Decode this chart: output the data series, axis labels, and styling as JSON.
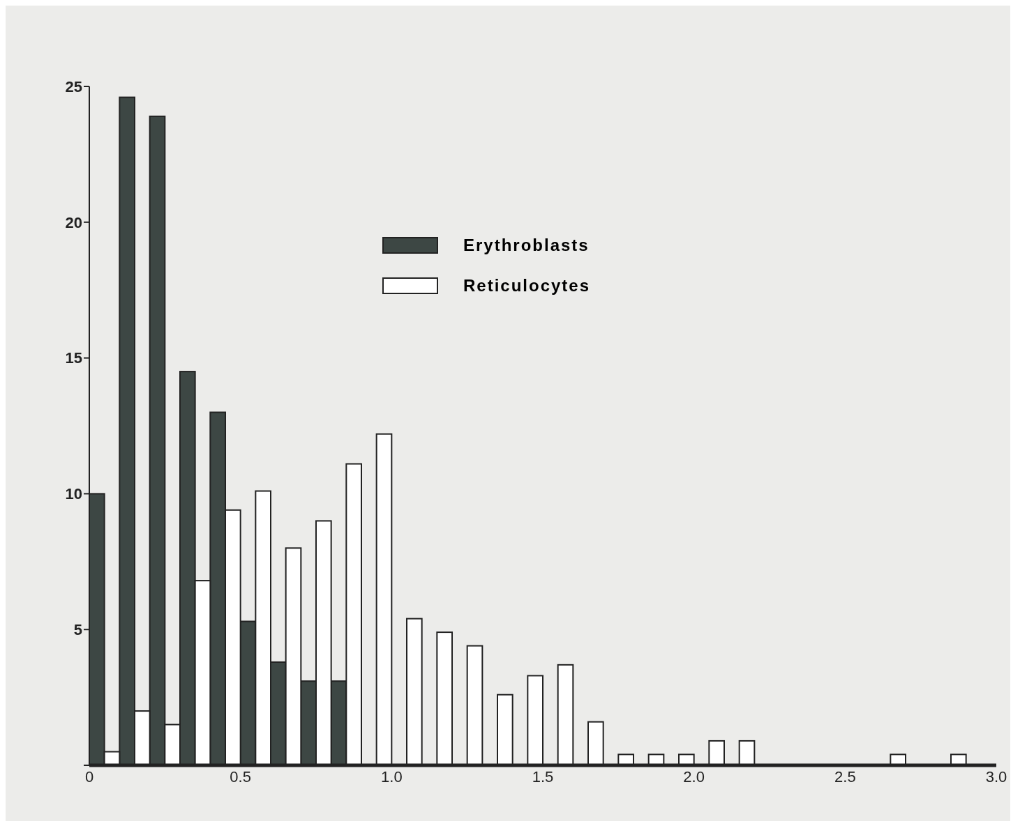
{
  "chart_data": {
    "type": "histogram",
    "bins": [
      0,
      0.1,
      0.2,
      0.3,
      0.4,
      0.5,
      0.6,
      0.7,
      0.8,
      0.9,
      1.0,
      1.1,
      1.2,
      1.3,
      1.4,
      1.5,
      1.6,
      1.7,
      1.8,
      1.9,
      2.0,
      2.1,
      2.2,
      2.3,
      2.4,
      2.5,
      2.6,
      2.7,
      2.8,
      2.9,
      3.0
    ],
    "series": [
      {
        "name": "Erythroblasts",
        "color": "#3d4744",
        "values": [
          10,
          24.6,
          23.9,
          14.5,
          13,
          5.3,
          3.8,
          3.1,
          3.1,
          0,
          0,
          0,
          0,
          0,
          0,
          0,
          0,
          0,
          0,
          0,
          0,
          0,
          0,
          0,
          0,
          0,
          0,
          0,
          0,
          0
        ]
      },
      {
        "name": "Reticulocytes",
        "color": "#ffffff",
        "values": [
          0.5,
          2.0,
          1.5,
          6.8,
          9.4,
          10.1,
          8,
          9,
          11.1,
          12.2,
          5.4,
          4.9,
          4.4,
          2.6,
          3.3,
          3.7,
          1.6,
          0.4,
          0.4,
          0.4,
          0.9,
          0.9,
          0,
          0,
          0,
          0,
          0.4,
          0,
          0.4,
          0
        ]
      }
    ],
    "xlim": [
      0,
      3.0
    ],
    "xticks": [
      0,
      0.5,
      {
        "value": 1,
        "label": "1.0"
      },
      1.5,
      {
        "value": 2,
        "label": "2.0"
      },
      2.5,
      {
        "value": 3,
        "label": "3.0"
      }
    ],
    "ylim": [
      0,
      25
    ],
    "yticks": [
      {
        "value": 0,
        "label": null
      },
      5,
      10,
      15,
      20,
      25
    ],
    "grid": false,
    "legend": "top"
  }
}
